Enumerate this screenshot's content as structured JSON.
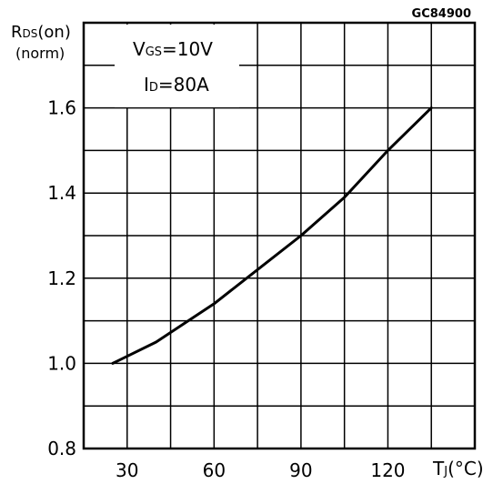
{
  "chart_data": {
    "type": "line",
    "figure_code": "GC84900",
    "ylabel": {
      "main": "R",
      "sub": "DS",
      "suffix": "(on)",
      "line2": "(norm)"
    },
    "xlabel": {
      "main": "T",
      "sub": "J",
      "suffix": "(°C)"
    },
    "annotation": [
      {
        "main": "V",
        "sub": "GS",
        "suffix": "=10V"
      },
      {
        "main": "I",
        "sub": "D",
        "suffix": "=80A"
      }
    ],
    "x_ticks": [
      {
        "value": 30,
        "label": "30"
      },
      {
        "value": 60,
        "label": "60"
      },
      {
        "value": 90,
        "label": "90"
      },
      {
        "value": 120,
        "label": "120"
      }
    ],
    "y_ticks": [
      {
        "value": 0.8,
        "label": "0.8"
      },
      {
        "value": 1.0,
        "label": "1.0"
      },
      {
        "value": 1.2,
        "label": "1.2"
      },
      {
        "value": 1.4,
        "label": "1.4"
      },
      {
        "value": 1.6,
        "label": "1.6"
      }
    ],
    "xlim": [
      15,
      150
    ],
    "ylim": [
      0.8,
      1.8
    ],
    "grid": true,
    "series": [
      {
        "points": [
          {
            "x": 25,
            "y": 1.0
          },
          {
            "x": 40,
            "y": 1.05
          },
          {
            "x": 60,
            "y": 1.14
          },
          {
            "x": 75,
            "y": 1.22
          },
          {
            "x": 90,
            "y": 1.3
          },
          {
            "x": 105,
            "y": 1.39
          },
          {
            "x": 120,
            "y": 1.5
          },
          {
            "x": 135,
            "y": 1.6
          }
        ],
        "color": "#000000"
      }
    ]
  }
}
